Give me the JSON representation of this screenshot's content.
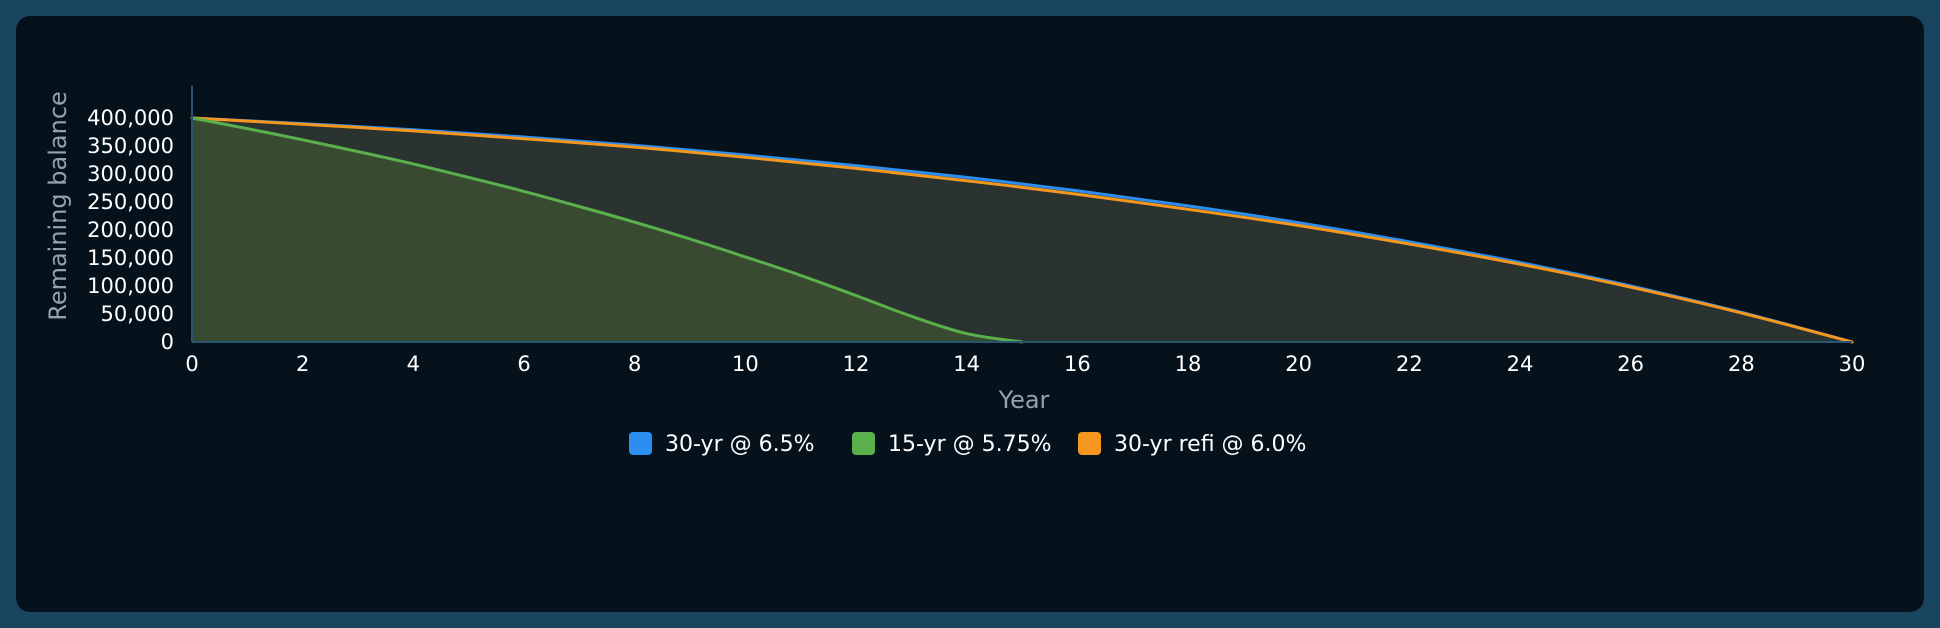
{
  "chart_data": {
    "type": "area",
    "title": "",
    "xlabel": "Year",
    "ylabel": "Remaining balance",
    "xlim": [
      0,
      30
    ],
    "ylim": [
      0,
      400000
    ],
    "x_ticks": [
      0,
      2,
      4,
      6,
      8,
      10,
      12,
      14,
      16,
      18,
      20,
      22,
      24,
      26,
      28,
      30
    ],
    "y_ticks": [
      0,
      50000,
      100000,
      150000,
      200000,
      250000,
      300000,
      350000,
      400000
    ],
    "y_tick_labels": [
      "0",
      "50,000",
      "100,000",
      "150,000",
      "200,000",
      "250,000",
      "300,000",
      "350,000",
      "400,000"
    ],
    "grid": false,
    "legend_position": "bottom",
    "series": [
      {
        "name": "30-yr @ 6.5%",
        "color": "#2b8ef0",
        "fill": "#2a332f",
        "x": [
          0,
          2,
          4,
          6,
          8,
          10,
          12,
          14,
          16,
          18,
          20,
          22,
          24,
          26,
          28,
          30
        ],
        "values": [
          400000,
          390000,
          379000,
          366000,
          351000,
          334000,
          315000,
          294000,
          270000,
          243000,
          213000,
          179000,
          142000,
          100000,
          53000,
          0
        ]
      },
      {
        "name": "15-yr @ 5.75%",
        "color": "#5ab04a",
        "fill": "#384b31",
        "x": [
          0,
          1,
          2,
          3,
          4,
          5,
          6,
          7,
          8,
          9,
          10,
          11,
          12,
          13,
          14,
          15
        ],
        "values": [
          400000,
          381000,
          361000,
          340000,
          318000,
          294000,
          269000,
          242000,
          214000,
          184000,
          152000,
          119000,
          83000,
          46000,
          15000,
          0
        ]
      },
      {
        "name": "30-yr refi @ 6.0%",
        "color": "#f5961f",
        "fill": "#2a332f",
        "x": [
          0,
          2,
          4,
          6,
          8,
          10,
          12,
          14,
          16,
          18,
          20,
          22,
          24,
          26,
          28,
          30
        ],
        "values": [
          400000,
          389000,
          377000,
          363000,
          348000,
          330000,
          310000,
          288000,
          264000,
          237000,
          208000,
          175000,
          139000,
          98000,
          52000,
          0
        ]
      }
    ]
  }
}
